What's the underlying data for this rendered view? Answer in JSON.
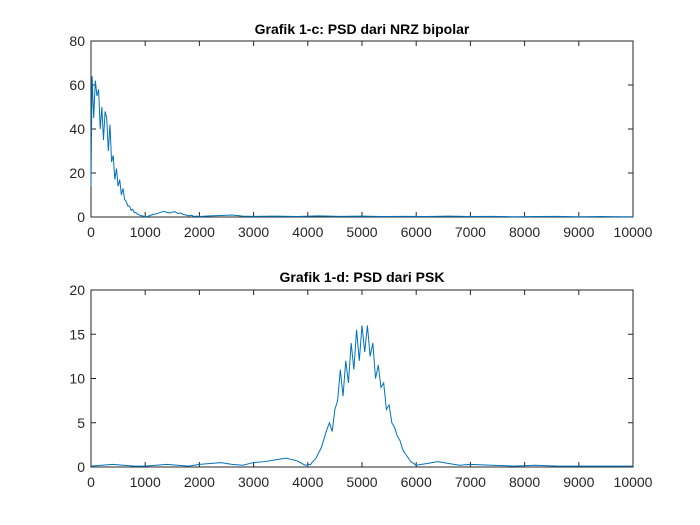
{
  "chart_data": [
    {
      "type": "line",
      "title": "Grafik 1-c: PSD dari NRZ bipolar",
      "xlabel": "",
      "ylabel": "",
      "xlim": [
        0,
        10000
      ],
      "ylim": [
        0,
        80
      ],
      "xticks": [
        0,
        1000,
        2000,
        3000,
        4000,
        5000,
        6000,
        7000,
        8000,
        9000,
        10000
      ],
      "yticks": [
        0,
        20,
        40,
        60,
        80
      ],
      "grid": false,
      "line_color": "#0072BD",
      "x": [
        0,
        20,
        50,
        80,
        110,
        140,
        170,
        200,
        230,
        260,
        290,
        320,
        350,
        380,
        410,
        440,
        470,
        500,
        530,
        560,
        590,
        620,
        650,
        680,
        710,
        740,
        770,
        800,
        830,
        860,
        890,
        920,
        950,
        980,
        1010,
        1050,
        1100,
        1150,
        1200,
        1250,
        1300,
        1350,
        1400,
        1450,
        1500,
        1550,
        1600,
        1650,
        1700,
        1750,
        1800,
        1850,
        1900,
        1950,
        2000,
        2200,
        2400,
        2600,
        2800,
        3000,
        3400,
        3800,
        4200,
        4600,
        5000,
        5400,
        5800,
        6200,
        6600,
        7000,
        7400,
        7800,
        8200,
        8600,
        9000,
        9400,
        9800,
        10000
      ],
      "y": [
        14,
        64,
        45,
        62,
        55,
        58,
        40,
        50,
        35,
        48,
        45,
        30,
        42,
        25,
        28,
        17,
        22,
        14,
        17,
        10,
        13,
        8,
        7,
        5,
        5,
        3,
        3.5,
        2,
        2,
        1.2,
        1,
        0.6,
        0.5,
        0.3,
        0.2,
        0.3,
        0.8,
        1.2,
        1.4,
        1.8,
        2.3,
        2.5,
        2.1,
        1.8,
        2.2,
        2.4,
        1.6,
        1.8,
        1.2,
        0.9,
        0.5,
        0.8,
        0.3,
        0.4,
        0.2,
        0.5,
        0.7,
        0.9,
        0.4,
        0.3,
        0.4,
        0.2,
        0.5,
        0.3,
        0.4,
        0.2,
        0.3,
        0.2,
        0.4,
        0.2,
        0.3,
        0.1,
        0.2,
        0.3,
        0.1,
        0.2,
        0.1,
        0.1
      ]
    },
    {
      "type": "line",
      "title": "Grafik 1-d: PSD dari PSK",
      "xlabel": "",
      "ylabel": "",
      "xlim": [
        0,
        10000
      ],
      "ylim": [
        0,
        20
      ],
      "xticks": [
        0,
        1000,
        2000,
        3000,
        4000,
        5000,
        6000,
        7000,
        8000,
        9000,
        10000
      ],
      "yticks": [
        0,
        5,
        10,
        15,
        20
      ],
      "grid": false,
      "line_color": "#0072BD",
      "x": [
        0,
        200,
        400,
        600,
        800,
        1000,
        1200,
        1400,
        1600,
        1800,
        2000,
        2200,
        2400,
        2600,
        2800,
        3000,
        3200,
        3400,
        3600,
        3800,
        3950,
        4050,
        4150,
        4250,
        4350,
        4400,
        4450,
        4500,
        4550,
        4600,
        4650,
        4700,
        4750,
        4800,
        4850,
        4900,
        4950,
        5000,
        5050,
        5100,
        5150,
        5200,
        5250,
        5300,
        5350,
        5400,
        5450,
        5500,
        5550,
        5600,
        5650,
        5700,
        5750,
        5800,
        5900,
        6000,
        6200,
        6400,
        6600,
        6800,
        7000,
        7400,
        7800,
        8200,
        8600,
        9000,
        9400,
        9800,
        10000
      ],
      "y": [
        0.1,
        0.2,
        0.3,
        0.2,
        0.1,
        0.1,
        0.2,
        0.3,
        0.2,
        0.1,
        0.3,
        0.4,
        0.5,
        0.3,
        0.2,
        0.5,
        0.6,
        0.8,
        1.0,
        0.7,
        0.2,
        0.3,
        1.0,
        2.2,
        4.2,
        5.0,
        4.0,
        6.5,
        7.5,
        11.0,
        8.0,
        12.0,
        9.5,
        14.0,
        11.0,
        15.5,
        12.0,
        16.0,
        13.0,
        16.0,
        12.5,
        14.0,
        10.0,
        11.5,
        9.0,
        9.5,
        6.5,
        7.0,
        5.0,
        4.5,
        3.5,
        3.0,
        2.0,
        1.5,
        0.6,
        0.2,
        0.4,
        0.6,
        0.4,
        0.2,
        0.3,
        0.2,
        0.1,
        0.2,
        0.1,
        0.1,
        0.1,
        0.1,
        0.1
      ]
    }
  ]
}
